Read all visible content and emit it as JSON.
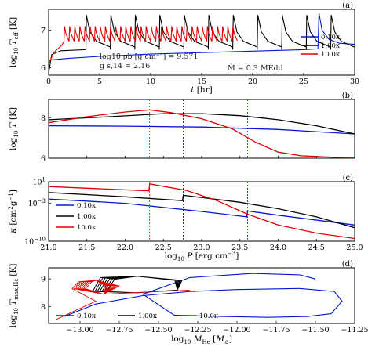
{
  "colors": {
    "low": "#0018d6",
    "mid": "#000000",
    "high": "#e00000"
  },
  "chart_data": [
    {
      "panel": "(a)",
      "type": "line",
      "xlabel": "t [hr]",
      "ylabel": "log10 Teff [K]",
      "xlim": [
        0,
        30
      ],
      "ylim": [
        5.8,
        7.55
      ],
      "xticks": [
        "0",
        "5",
        "10",
        "15",
        "20",
        "25",
        "30"
      ],
      "yticks": [
        "6",
        "7"
      ],
      "annotations": [
        "log10 ρb [g cm⁻³] = 9.571",
        "g s,14 = 2.16",
        "Ṁ = 0.3 ṀEdd"
      ],
      "legend": [
        "0.10κ",
        "1.00κ",
        "10.0κ"
      ],
      "series": [
        {
          "name": "0.10κ",
          "color": "low",
          "note": "slow rise from 6.2 to 6.5, single burst near t≈26.5 hr",
          "x": [
            0,
            2,
            5,
            10,
            15,
            20,
            25,
            26.4,
            26.5,
            26.8,
            27.5,
            28.5,
            30
          ],
          "y": [
            6.2,
            6.25,
            6.3,
            6.36,
            6.4,
            6.44,
            6.48,
            6.5,
            7.45,
            7.0,
            6.75,
            6.65,
            6.62
          ]
        },
        {
          "name": "1.00κ",
          "color": "mid",
          "note": "recurring bursts every ≈2 hr reaching log Teff≈7.4",
          "burst_times": [
            3.7,
            6.1,
            8.5,
            10.9,
            13.3,
            15.7,
            18.1,
            20.5,
            22.9,
            25.3,
            27.7
          ],
          "burst_peak": 7.4,
          "quiescent": 6.5
        },
        {
          "name": "10.0κ",
          "color": "high",
          "note": "rapid bursts every ≈0.5 hr between t≈1.5 and t≈18.5 hr",
          "burst_start": 1.5,
          "burst_end": 18.5,
          "burst_period": 0.5,
          "burst_peak": 7.1,
          "quiescent": 6.7
        }
      ]
    },
    {
      "panel": "(b)",
      "type": "line",
      "xlabel": "",
      "ylabel": "log10 T [K]",
      "xlim": [
        21,
        25
      ],
      "ylim": [
        6,
        8.9
      ],
      "yticks": [
        "6",
        "8"
      ],
      "vlines": [
        {
          "x": 22.32,
          "color": "high"
        },
        {
          "x": 22.76,
          "color": "mid"
        },
        {
          "x": 23.6,
          "color": "low"
        }
      ],
      "series": [
        {
          "name": "0.10κ",
          "color": "low",
          "x": [
            21,
            22,
            23,
            24,
            25
          ],
          "y": [
            7.6,
            7.58,
            7.54,
            7.42,
            7.2
          ]
        },
        {
          "name": "1.00κ",
          "color": "mid",
          "x": [
            21,
            21.8,
            22.5,
            23,
            23.5,
            24,
            24.5,
            25
          ],
          "y": [
            7.9,
            8.05,
            8.2,
            8.2,
            8.1,
            7.9,
            7.6,
            7.2
          ]
        },
        {
          "name": "10.0κ",
          "color": "high",
          "x": [
            21,
            21.5,
            22,
            22.32,
            22.6,
            23,
            23.4,
            23.7,
            24,
            24.3,
            24.7,
            25
          ],
          "y": [
            7.75,
            8.05,
            8.28,
            8.38,
            8.25,
            7.95,
            7.45,
            6.8,
            6.3,
            6.12,
            6.05,
            6.02
          ]
        }
      ]
    },
    {
      "panel": "(c)",
      "type": "line",
      "xlabel": "log10 P [erg cm⁻³]",
      "ylabel": "κ [cm² g⁻¹]",
      "xlim": [
        21,
        25
      ],
      "yscale": "log",
      "ylim": [
        -10,
        1
      ],
      "xticks": [
        "21.0",
        "21.5",
        "22.0",
        "22.5",
        "23.0",
        "23.5",
        "24.0",
        "24.5",
        "25.0"
      ],
      "yticks": [
        "10¹",
        "10⁻³",
        "10⁻¹⁰"
      ],
      "legend": [
        "0.10κ",
        "1.00κ",
        "10.0κ"
      ],
      "vlines": [
        {
          "x": 22.32,
          "color": "high"
        },
        {
          "x": 22.76,
          "color": "mid"
        },
        {
          "x": 23.6,
          "color": "low"
        }
      ],
      "series": [
        {
          "name": "0.10κ",
          "color": "low",
          "x": [
            21,
            22,
            23,
            23.59,
            23.6,
            24,
            25
          ],
          "y": [
            -2.2,
            -3.0,
            -4.5,
            -5.5,
            -4.4,
            -5.2,
            -7.0
          ]
        },
        {
          "name": "1.00κ",
          "color": "mid",
          "x": [
            21,
            22,
            22.75,
            22.76,
            23.5,
            24,
            24.5,
            25
          ],
          "y": [
            -1.0,
            -1.8,
            -2.5,
            -1.5,
            -2.8,
            -4.0,
            -5.5,
            -7.5
          ]
        },
        {
          "name": "10.0κ",
          "color": "high",
          "x": [
            21,
            22.31,
            22.32,
            22.8,
            23.2,
            23.6,
            24,
            24.5,
            25
          ],
          "y": [
            0.1,
            -0.7,
            0.6,
            -0.6,
            -2.5,
            -5.0,
            -7.0,
            -8.5,
            -9.5
          ]
        }
      ]
    },
    {
      "panel": "(d)",
      "type": "line",
      "xlabel": "log10 MHe [M⊙]",
      "ylabel": "log10 Tmax,Hε [K]",
      "xlim": [
        -13.2,
        -11.25
      ],
      "ylim": [
        7.4,
        9.4
      ],
      "xticks": [
        "−13.00",
        "−12.75",
        "−12.50",
        "−12.25",
        "−12.00",
        "−11.75",
        "−11.50",
        "−11.25"
      ],
      "yticks": [
        "8",
        "9"
      ],
      "legend": [
        "0.10κ",
        "1.00κ",
        "10.0κ"
      ],
      "series": [
        {
          "name": "0.10κ",
          "color": "low",
          "note": "large loop reaching M≈−11.3",
          "x": [
            -13.1,
            -12.9,
            -12.6,
            -12.3,
            -12.0,
            -11.6,
            -11.38,
            -11.33,
            -11.4,
            -11.55,
            -11.8,
            -12.1,
            -12.4,
            -12.6,
            -12.3,
            -11.9,
            -11.6,
            -11.5
          ],
          "y": [
            7.65,
            8.1,
            8.4,
            8.55,
            8.62,
            8.66,
            8.55,
            8.2,
            7.75,
            7.65,
            7.62,
            7.65,
            7.7,
            8.45,
            9.05,
            9.2,
            9.15,
            9.0
          ]
        },
        {
          "name": "1.00κ",
          "color": "mid",
          "note": "tight repeated cycles between M≈−12.9 and −12.35",
          "x_range": [
            -12.92,
            -12.35
          ],
          "y_range": [
            8.5,
            9.1
          ]
        },
        {
          "name": "10.0κ",
          "color": "high",
          "note": "small repeated cycles near M≈−12.95, plus initial ramp",
          "x_range": [
            -13.05,
            -12.75
          ],
          "y_range": [
            8.45,
            8.95
          ],
          "ramp_x": [
            -13.15,
            -12.9
          ],
          "ramp_y": [
            7.55,
            8.2
          ]
        }
      ]
    }
  ]
}
